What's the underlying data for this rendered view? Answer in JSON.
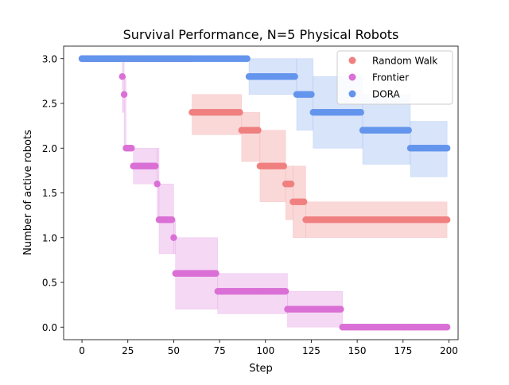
{
  "chart_data": {
    "type": "scatter",
    "title": "Survival Performance, N=5 Physical Robots",
    "xlabel": "Step",
    "ylabel": "Number of active robots",
    "xlim": [
      -10,
      205
    ],
    "ylim": [
      -0.14,
      3.14
    ],
    "x_ticks": [
      0,
      25,
      50,
      75,
      100,
      125,
      150,
      175,
      200
    ],
    "x_tick_labels": [
      "0",
      "25",
      "50",
      "75",
      "100",
      "125",
      "150",
      "175",
      "200"
    ],
    "y_ticks": [
      0.0,
      0.5,
      1.0,
      1.5,
      2.0,
      2.5,
      3.0
    ],
    "y_tick_labels": [
      "0.0",
      "0.5",
      "1.0",
      "1.5",
      "2.0",
      "2.5",
      "3.0"
    ],
    "grid": false,
    "legend_position": "top-right",
    "x_max": 199,
    "series": [
      {
        "name": "Random Walk",
        "color": "#f08080",
        "band_color": "#f8c8c8",
        "segments": [
          {
            "start": 0,
            "end": 60,
            "mean": 3.0,
            "lower": 3.0,
            "upper": 3.0
          },
          {
            "start": 60,
            "end": 87,
            "mean": 2.4,
            "lower": 2.15,
            "upper": 2.6
          },
          {
            "start": 87,
            "end": 97,
            "mean": 2.2,
            "lower": 1.85,
            "upper": 2.4
          },
          {
            "start": 97,
            "end": 111,
            "mean": 1.8,
            "lower": 1.4,
            "upper": 2.2
          },
          {
            "start": 111,
            "end": 115,
            "mean": 1.6,
            "lower": 1.2,
            "upper": 1.8
          },
          {
            "start": 115,
            "end": 122,
            "mean": 1.4,
            "lower": 1.0,
            "upper": 1.8
          },
          {
            "start": 122,
            "end": 199,
            "mean": 1.2,
            "lower": 1.0,
            "upper": 1.4
          }
        ]
      },
      {
        "name": "Frontier",
        "color": "#da70d6",
        "band_color": "#f0c8f0",
        "segments": [
          {
            "start": 0,
            "end": 22,
            "mean": 3.0,
            "lower": 3.0,
            "upper": 3.0
          },
          {
            "start": 22,
            "end": 23,
            "mean": 2.8,
            "lower": 2.4,
            "upper": 3.0
          },
          {
            "start": 23,
            "end": 24,
            "mean": 2.6,
            "lower": 2.0,
            "upper": 2.8
          },
          {
            "start": 24,
            "end": 28,
            "mean": 2.0,
            "lower": 2.0,
            "upper": 2.0
          },
          {
            "start": 28,
            "end": 41,
            "mean": 1.8,
            "lower": 1.6,
            "upper": 2.0
          },
          {
            "start": 41,
            "end": 42,
            "mean": 1.6,
            "lower": 1.2,
            "upper": 2.0
          },
          {
            "start": 42,
            "end": 50,
            "mean": 1.2,
            "lower": 0.82,
            "upper": 1.6
          },
          {
            "start": 50,
            "end": 51,
            "mean": 1.0,
            "lower": 0.82,
            "upper": 1.2
          },
          {
            "start": 51,
            "end": 74,
            "mean": 0.6,
            "lower": 0.2,
            "upper": 1.0
          },
          {
            "start": 74,
            "end": 112,
            "mean": 0.4,
            "lower": 0.15,
            "upper": 0.6
          },
          {
            "start": 112,
            "end": 142,
            "mean": 0.2,
            "lower": 0.0,
            "upper": 0.4
          },
          {
            "start": 142,
            "end": 199,
            "mean": 0.0,
            "lower": 0.0,
            "upper": 0.0
          }
        ]
      },
      {
        "name": "DORA",
        "color": "#6495ed",
        "band_color": "#c8d8f8",
        "segments": [
          {
            "start": 0,
            "end": 91,
            "mean": 3.0,
            "lower": 3.0,
            "upper": 3.0
          },
          {
            "start": 91,
            "end": 117,
            "mean": 2.8,
            "lower": 2.6,
            "upper": 3.0
          },
          {
            "start": 117,
            "end": 126,
            "mean": 2.6,
            "lower": 2.2,
            "upper": 3.0
          },
          {
            "start": 126,
            "end": 153,
            "mean": 2.4,
            "lower": 2.0,
            "upper": 2.8
          },
          {
            "start": 153,
            "end": 179,
            "mean": 2.2,
            "lower": 1.82,
            "upper": 2.6
          },
          {
            "start": 179,
            "end": 199,
            "mean": 2.0,
            "lower": 1.68,
            "upper": 2.3
          }
        ]
      }
    ]
  }
}
